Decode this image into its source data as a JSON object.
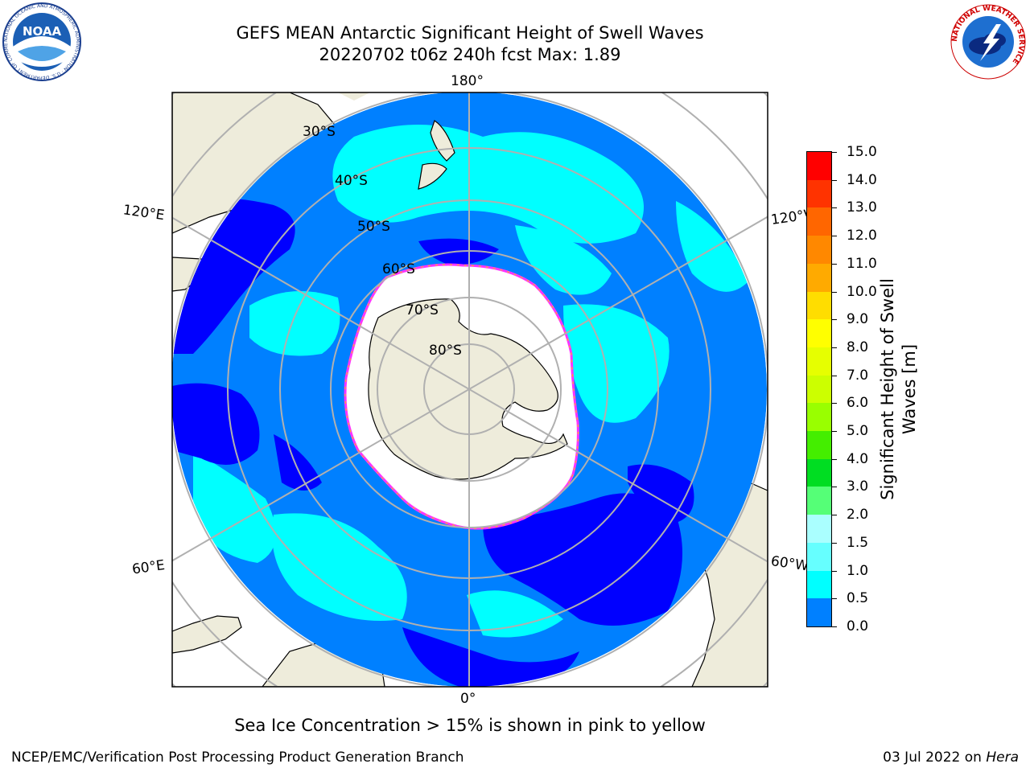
{
  "header": {
    "title_line1": "GEFS MEAN Antarctic Significant Height of Swell Waves",
    "title_line2": "20220702 t06z 240h fcst   Max: 1.89"
  },
  "logos": {
    "left": "NOAA",
    "left_ring_text": "NATIONAL OCEANIC AND ATMOSPHERIC ADMINISTRATION · U.S. DEPARTMENT OF COMMERCE",
    "right_ring_text": "NATIONAL WEATHER SERVICE"
  },
  "map": {
    "projection": "south-polar-stereographic",
    "longitude_labels": {
      "top": "180°",
      "bottom": "0°",
      "left_upper": "120°E",
      "left_lower": "60°E",
      "right_upper": "120°W",
      "right_lower": "60°W"
    },
    "latitude_labels": [
      "30°S",
      "40°S",
      "50°S",
      "60°S",
      "70°S",
      "80°S"
    ],
    "colors": {
      "land": "#eeecdb",
      "sea_ice": "#ffffff",
      "ice_edge": "#ff33ff",
      "grid": "#b0b0b0"
    }
  },
  "colorbar": {
    "label": "Significant Height of Swell Waves [m]",
    "ticks": [
      "15.0",
      "14.0",
      "13.0",
      "12.0",
      "11.0",
      "10.0",
      "9.0",
      "8.0",
      "7.0",
      "6.0",
      "5.0",
      "4.0",
      "3.0",
      "2.0",
      "1.5",
      "1.0",
      "0.5",
      "0.0"
    ],
    "colors_top_to_bottom": [
      "#ff0000",
      "#ff3300",
      "#ff6600",
      "#ff8800",
      "#ffaa00",
      "#ffdd00",
      "#ffff00",
      "#e6ff00",
      "#ccff00",
      "#99ff00",
      "#44ee00",
      "#00dd22",
      "#55ff77",
      "#aaffff",
      "#66ffff",
      "#00ffff",
      "#0080ff",
      "#0000ff"
    ]
  },
  "caption": "Sea Ice Concentration > 15% is shown in pink to yellow",
  "footer": {
    "left": "NCEP/EMC/Verification Post Processing Product Generation Branch",
    "right_prefix": "03 Jul 2022 on ",
    "right_system": "Hera"
  }
}
